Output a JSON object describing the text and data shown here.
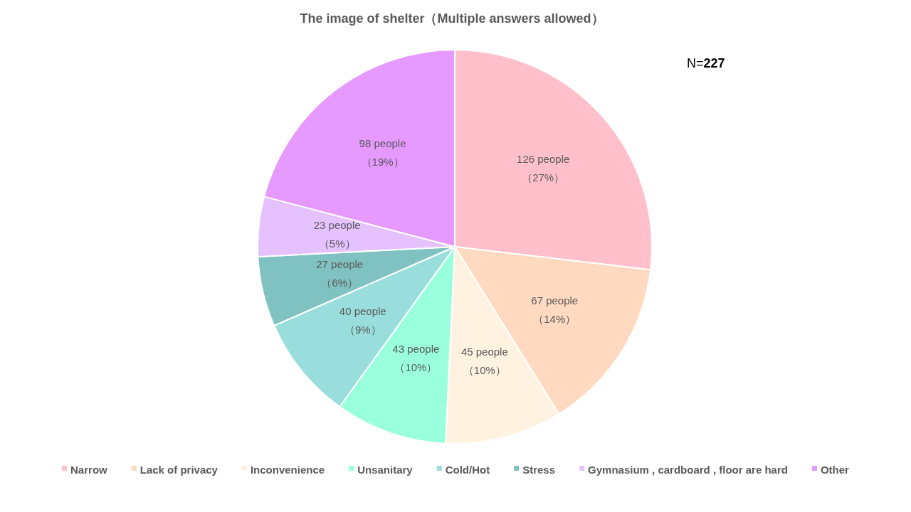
{
  "chart_data": {
    "type": "pie",
    "title": "The image of shelter（Multiple answers allowed）",
    "categories": [
      "Narrow",
      "Lack of privacy",
      "Inconvenience",
      "Unsanitary",
      "Cold/Hot",
      "Stress",
      "Gymnasium , cardboard , floor are hard",
      "Other"
    ],
    "values": [
      126,
      67,
      45,
      43,
      40,
      27,
      23,
      98
    ],
    "colors": [
      "#ffc0cb",
      "#ffdac1",
      "#fff2e1",
      "#99ffdd",
      "#99dddd",
      "#80c2c2",
      "#e5c2ff",
      "#e699ff"
    ],
    "value_labels": [
      "126 people（27%）",
      "67 people（14%）",
      "45 people（10%）",
      "43 people（10%）",
      "40 people（9%）",
      "27 people（6%）",
      "23 people（5%）",
      "98 people（19%）"
    ],
    "annotations": [
      "N=**227**"
    ],
    "legend": "bottom"
  }
}
